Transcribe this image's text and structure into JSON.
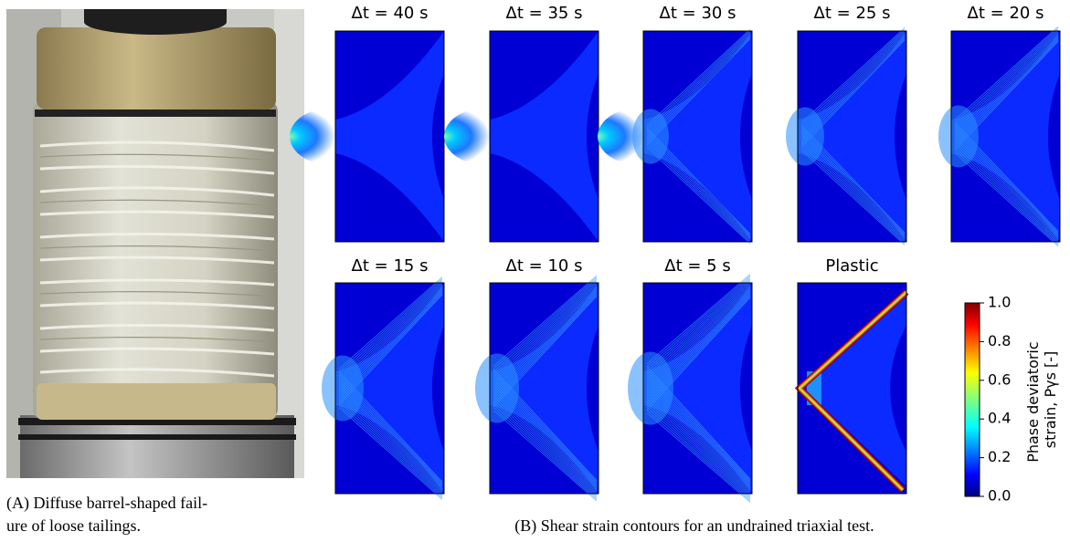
{
  "figure": {
    "panel_a": {
      "caption_lines": [
        "(A) Diffuse barrel-shaped fail-",
        "ure of loose tailings."
      ]
    },
    "panel_b": {
      "caption": "(B) Shear strain contours for an undrained triaxial test.",
      "plots": [
        {
          "title": "Δt = 40 s"
        },
        {
          "title": "Δt = 35 s"
        },
        {
          "title": "Δt = 30 s"
        },
        {
          "title": "Δt = 25 s"
        },
        {
          "title": "Δt = 20 s"
        },
        {
          "title": "Δt = 15 s"
        },
        {
          "title": "Δt = 10 s"
        },
        {
          "title": "Δt = 5 s"
        },
        {
          "title": "Plastic"
        }
      ],
      "colorbar": {
        "label_lines": [
          "Phase deviatoric",
          "strain, Pγs [-]"
        ],
        "ylim": [
          0,
          1
        ],
        "yticks": [
          {
            "value": 0,
            "label": "0.0"
          },
          0.2,
          0.4,
          0.6,
          0.8,
          {
            "value": 1,
            "label": "1.0"
          }
        ]
      }
    }
  }
}
